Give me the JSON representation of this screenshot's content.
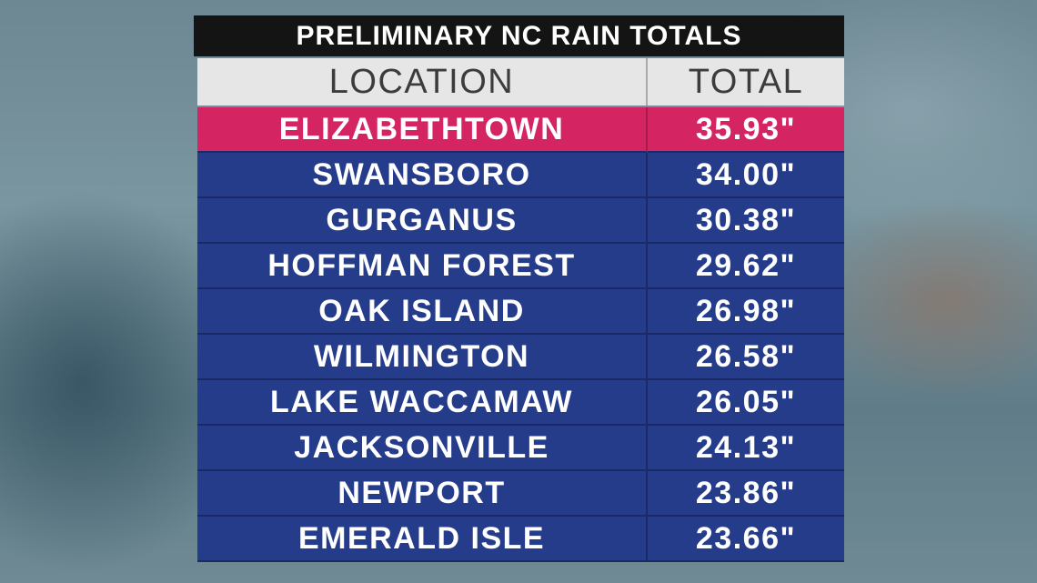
{
  "header": {
    "title": "PRELIMINARY NC RAIN TOTALS"
  },
  "table": {
    "columns": [
      "LOCATION",
      "TOTAL"
    ],
    "rows": [
      [
        "ELIZABETHTOWN",
        "35.93\""
      ],
      [
        "SWANSBORO",
        "34.00\""
      ],
      [
        "GURGANUS",
        "30.38\""
      ],
      [
        "HOFFMAN FOREST",
        "29.62\""
      ],
      [
        "OAK ISLAND",
        "26.98\""
      ],
      [
        "WILMINGTON",
        "26.58\""
      ],
      [
        "LAKE WACCAMAW",
        "26.05\""
      ],
      [
        "JACKSONVILLE",
        "24.13\""
      ],
      [
        "NEWPORT",
        "23.86\""
      ],
      [
        "EMERALD ISLE",
        "23.66\""
      ]
    ]
  }
}
